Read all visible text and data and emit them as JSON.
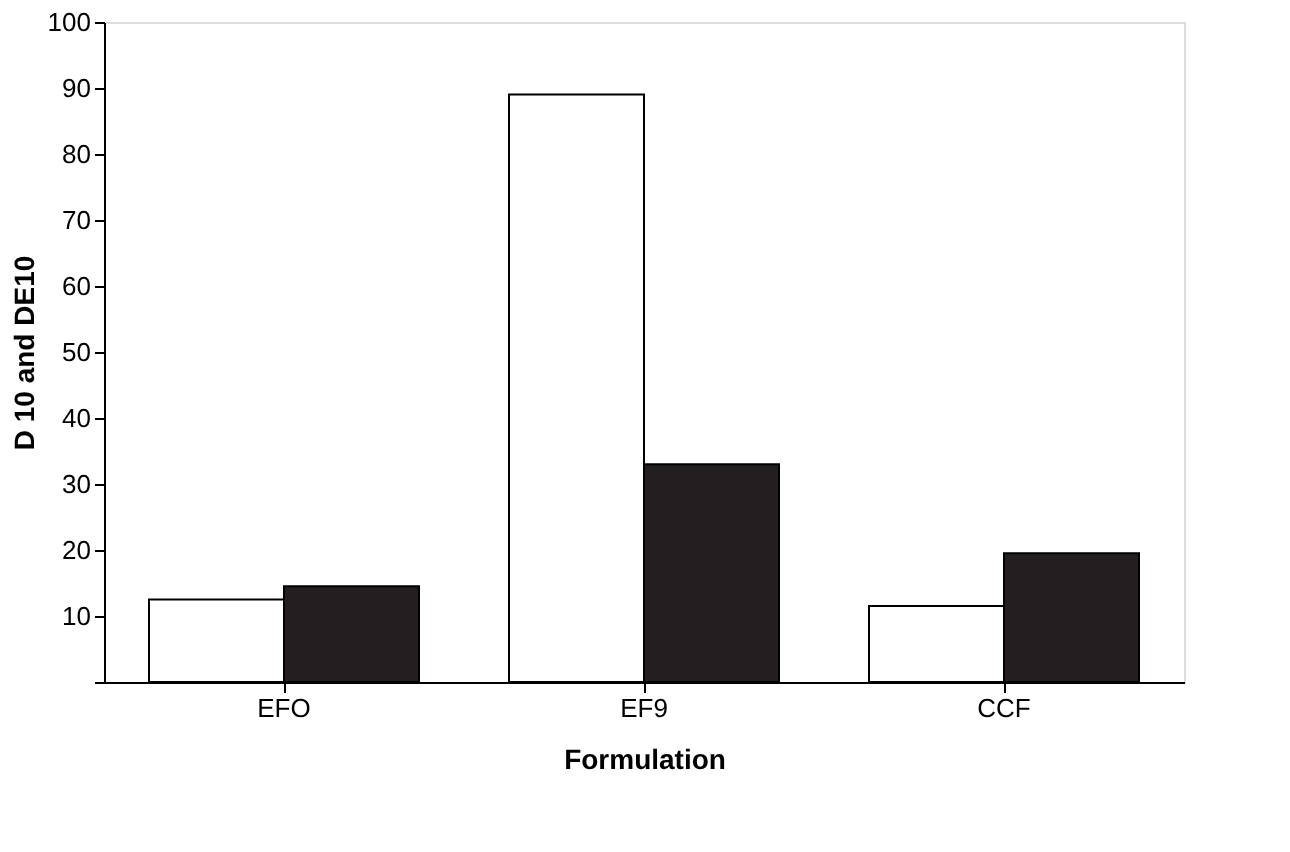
{
  "chart_data": {
    "type": "bar",
    "xlabel": "Formulation",
    "ylabel": "D 10 and DE10",
    "categories": [
      "EFO",
      "EF9",
      "CCF"
    ],
    "series": [
      {
        "color": "#ffffff",
        "values": [
          12.5,
          89,
          11.5
        ]
      },
      {
        "color": "#231f20",
        "values": [
          14.5,
          33,
          19.5
        ]
      }
    ],
    "ylim": [
      0,
      100
    ],
    "yticks": [
      {
        "value": 0,
        "label": null
      },
      10,
      20,
      30,
      40,
      50,
      60,
      70,
      80,
      90,
      100
    ],
    "grid": false,
    "legend": false
  }
}
